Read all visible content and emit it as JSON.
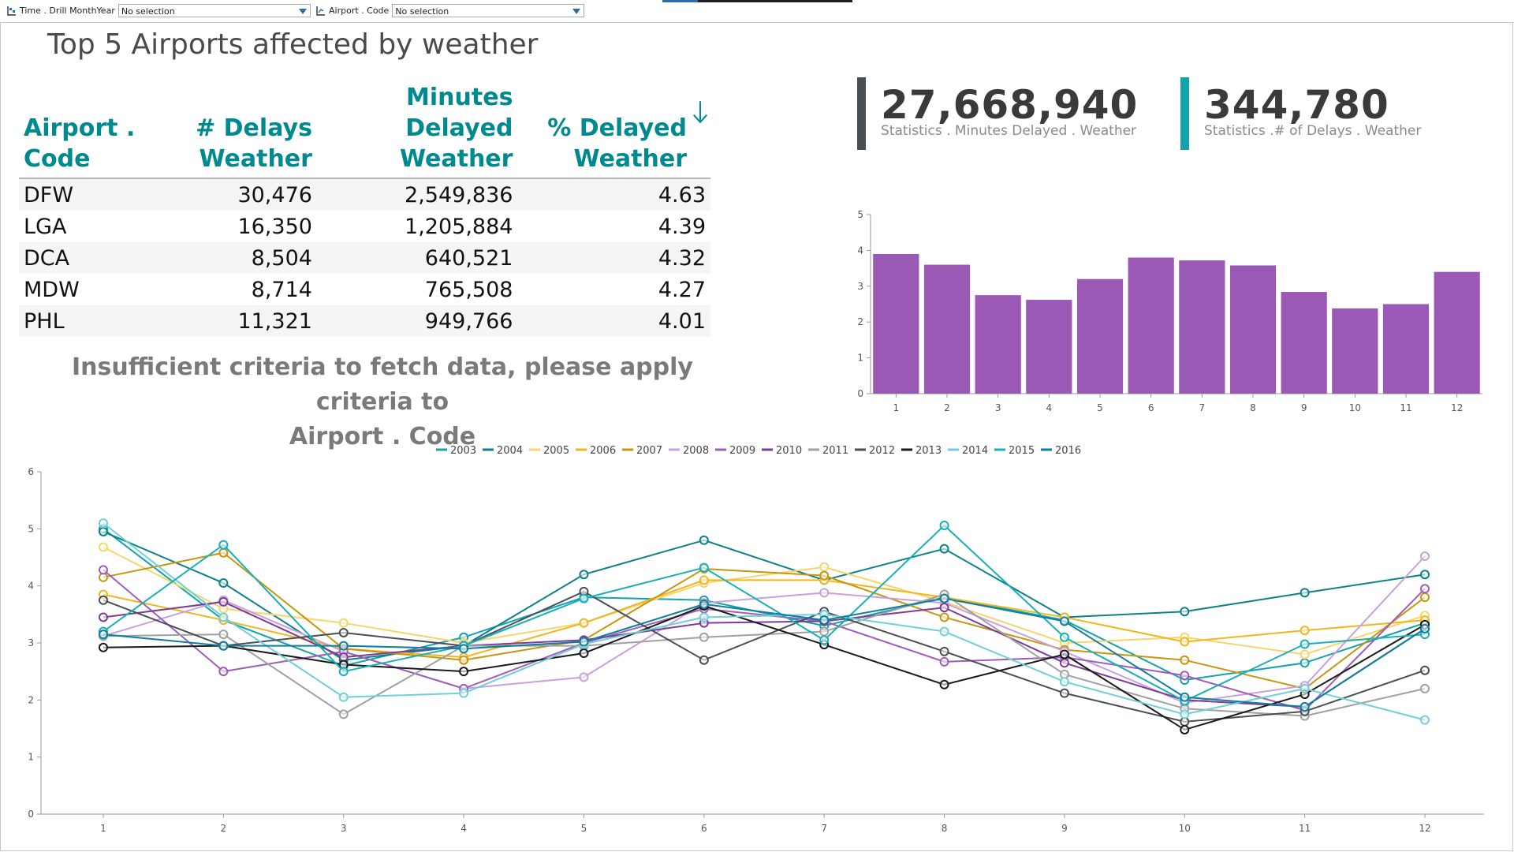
{
  "filters": [
    {
      "label": "Time . Drill MonthYear",
      "value": "No selection"
    },
    {
      "label": "Airport . Code",
      "value": "No selection"
    }
  ],
  "title": "Top 5 Airports affected by weather",
  "table": {
    "headers": [
      {
        "line1": "Airport . Code",
        "line2": ""
      },
      {
        "line1": "# Delays",
        "line2": "Weather"
      },
      {
        "line1": "Minutes Delayed",
        "line2": "Weather"
      },
      {
        "line1": "% Delayed",
        "line2": "Weather"
      }
    ],
    "rows": [
      {
        "code": "DFW",
        "delays": "30,476",
        "minutes": "2,549,836",
        "pct": "4.63"
      },
      {
        "code": "LGA",
        "delays": "16,350",
        "minutes": "1,205,884",
        "pct": "4.39"
      },
      {
        "code": "DCA",
        "delays": "8,504",
        "minutes": "640,521",
        "pct": "4.32"
      },
      {
        "code": "MDW",
        "delays": "8,714",
        "minutes": "765,508",
        "pct": "4.27"
      },
      {
        "code": "PHL",
        "delays": "11,321",
        "minutes": "949,766",
        "pct": "4.01"
      }
    ]
  },
  "kpis": [
    {
      "value": "27,668,940",
      "caption": "Statistics . Minutes Delayed . Weather",
      "color": "#4a4f54"
    },
    {
      "value": "344,780",
      "caption": "Statistics .# of Delays . Weather",
      "color": "#12a3ad"
    }
  ],
  "insufficient": {
    "line1": "Insufficient criteria to fetch data, please apply criteria to",
    "line2": "Airport . Code"
  },
  "colors": {
    "accent": "#008a8f",
    "bar": "#9b59b6",
    "tab": "#2e6da4"
  },
  "chart_data": [
    {
      "type": "bar",
      "categories": [
        "1",
        "2",
        "3",
        "4",
        "5",
        "6",
        "7",
        "8",
        "9",
        "10",
        "11",
        "12"
      ],
      "values": [
        3.9,
        3.6,
        2.75,
        2.62,
        3.2,
        3.8,
        3.72,
        3.58,
        2.84,
        2.38,
        2.5,
        3.4
      ],
      "ylim": [
        0,
        5
      ],
      "yticks": [
        "0",
        "1",
        "2",
        "3",
        "4",
        "5"
      ],
      "grid": false
    },
    {
      "type": "line",
      "x": [
        "1",
        "2",
        "3",
        "4",
        "5",
        "6",
        "7",
        "8",
        "9",
        "10",
        "11",
        "12"
      ],
      "ylim": [
        0,
        6
      ],
      "yticks": [
        "0",
        "1",
        "2",
        "3",
        "4",
        "5",
        "6"
      ],
      "legend_position": "top",
      "series": [
        {
          "name": "2003",
          "color": "#12a3ad",
          "values": [
            5.0,
            3.4,
            2.6,
            3.1,
            3.8,
            3.75,
            3.3,
            3.8,
            3.4,
            2.35,
            2.65,
            3.35
          ]
        },
        {
          "name": "2004",
          "color": "#0b8189",
          "values": [
            4.95,
            4.05,
            2.7,
            2.95,
            4.2,
            4.8,
            4.1,
            4.65,
            3.45,
            3.55,
            3.88,
            4.2
          ]
        },
        {
          "name": "2005",
          "color": "#f6d56a",
          "values": [
            4.68,
            3.6,
            3.35,
            3.0,
            3.35,
            4.05,
            4.33,
            3.72,
            3.0,
            3.1,
            2.8,
            3.48
          ]
        },
        {
          "name": "2006",
          "color": "#f2b51d",
          "values": [
            3.85,
            3.4,
            2.9,
            2.75,
            3.35,
            4.1,
            4.1,
            3.8,
            3.45,
            3.02,
            3.22,
            3.4
          ]
        },
        {
          "name": "2007",
          "color": "#c8960c",
          "values": [
            4.15,
            4.58,
            2.9,
            2.7,
            3.05,
            4.3,
            4.18,
            3.45,
            2.88,
            2.7,
            2.2,
            3.8
          ]
        },
        {
          "name": "2008",
          "color": "#c9a0dc",
          "values": [
            3.12,
            3.75,
            2.85,
            2.2,
            2.4,
            3.7,
            3.88,
            3.7,
            2.85,
            1.95,
            2.25,
            4.52
          ]
        },
        {
          "name": "2009",
          "color": "#a05db8",
          "values": [
            4.28,
            2.5,
            2.85,
            2.2,
            3.0,
            3.6,
            3.38,
            2.67,
            2.75,
            2.43,
            1.82,
            3.95
          ]
        },
        {
          "name": "2010",
          "color": "#7d3c98",
          "values": [
            3.45,
            3.72,
            2.75,
            2.95,
            3.05,
            3.35,
            3.38,
            3.62,
            2.65,
            2.0,
            1.88,
            3.25
          ]
        },
        {
          "name": "2011",
          "color": "#a0a0a0",
          "values": [
            3.12,
            3.15,
            1.75,
            2.95,
            2.95,
            3.1,
            3.2,
            3.85,
            2.45,
            1.85,
            1.72,
            2.2
          ]
        },
        {
          "name": "2012",
          "color": "#4a4f54",
          "values": [
            3.75,
            2.95,
            3.18,
            2.95,
            3.9,
            2.7,
            3.55,
            2.85,
            2.12,
            1.62,
            1.8,
            2.52
          ]
        },
        {
          "name": "2013",
          "color": "#1a1a1a",
          "values": [
            2.92,
            2.95,
            2.62,
            2.5,
            2.82,
            3.65,
            2.97,
            2.27,
            2.8,
            1.48,
            2.1,
            3.32
          ]
        },
        {
          "name": "2014",
          "color": "#70cfd8",
          "values": [
            5.1,
            3.45,
            2.05,
            2.12,
            2.98,
            3.45,
            3.5,
            3.2,
            2.32,
            1.75,
            2.2,
            1.65
          ]
        },
        {
          "name": "2015",
          "color": "#18b0b8",
          "values": [
            3.2,
            4.72,
            2.5,
            2.95,
            3.78,
            4.32,
            3.05,
            5.06,
            3.1,
            1.98,
            2.98,
            3.15
          ]
        },
        {
          "name": "2016",
          "color": "#0e7f9e",
          "values": [
            3.15,
            2.95,
            2.95,
            2.9,
            3.02,
            3.68,
            3.4,
            3.78,
            3.38,
            2.05,
            1.88,
            3.25
          ]
        }
      ]
    }
  ]
}
